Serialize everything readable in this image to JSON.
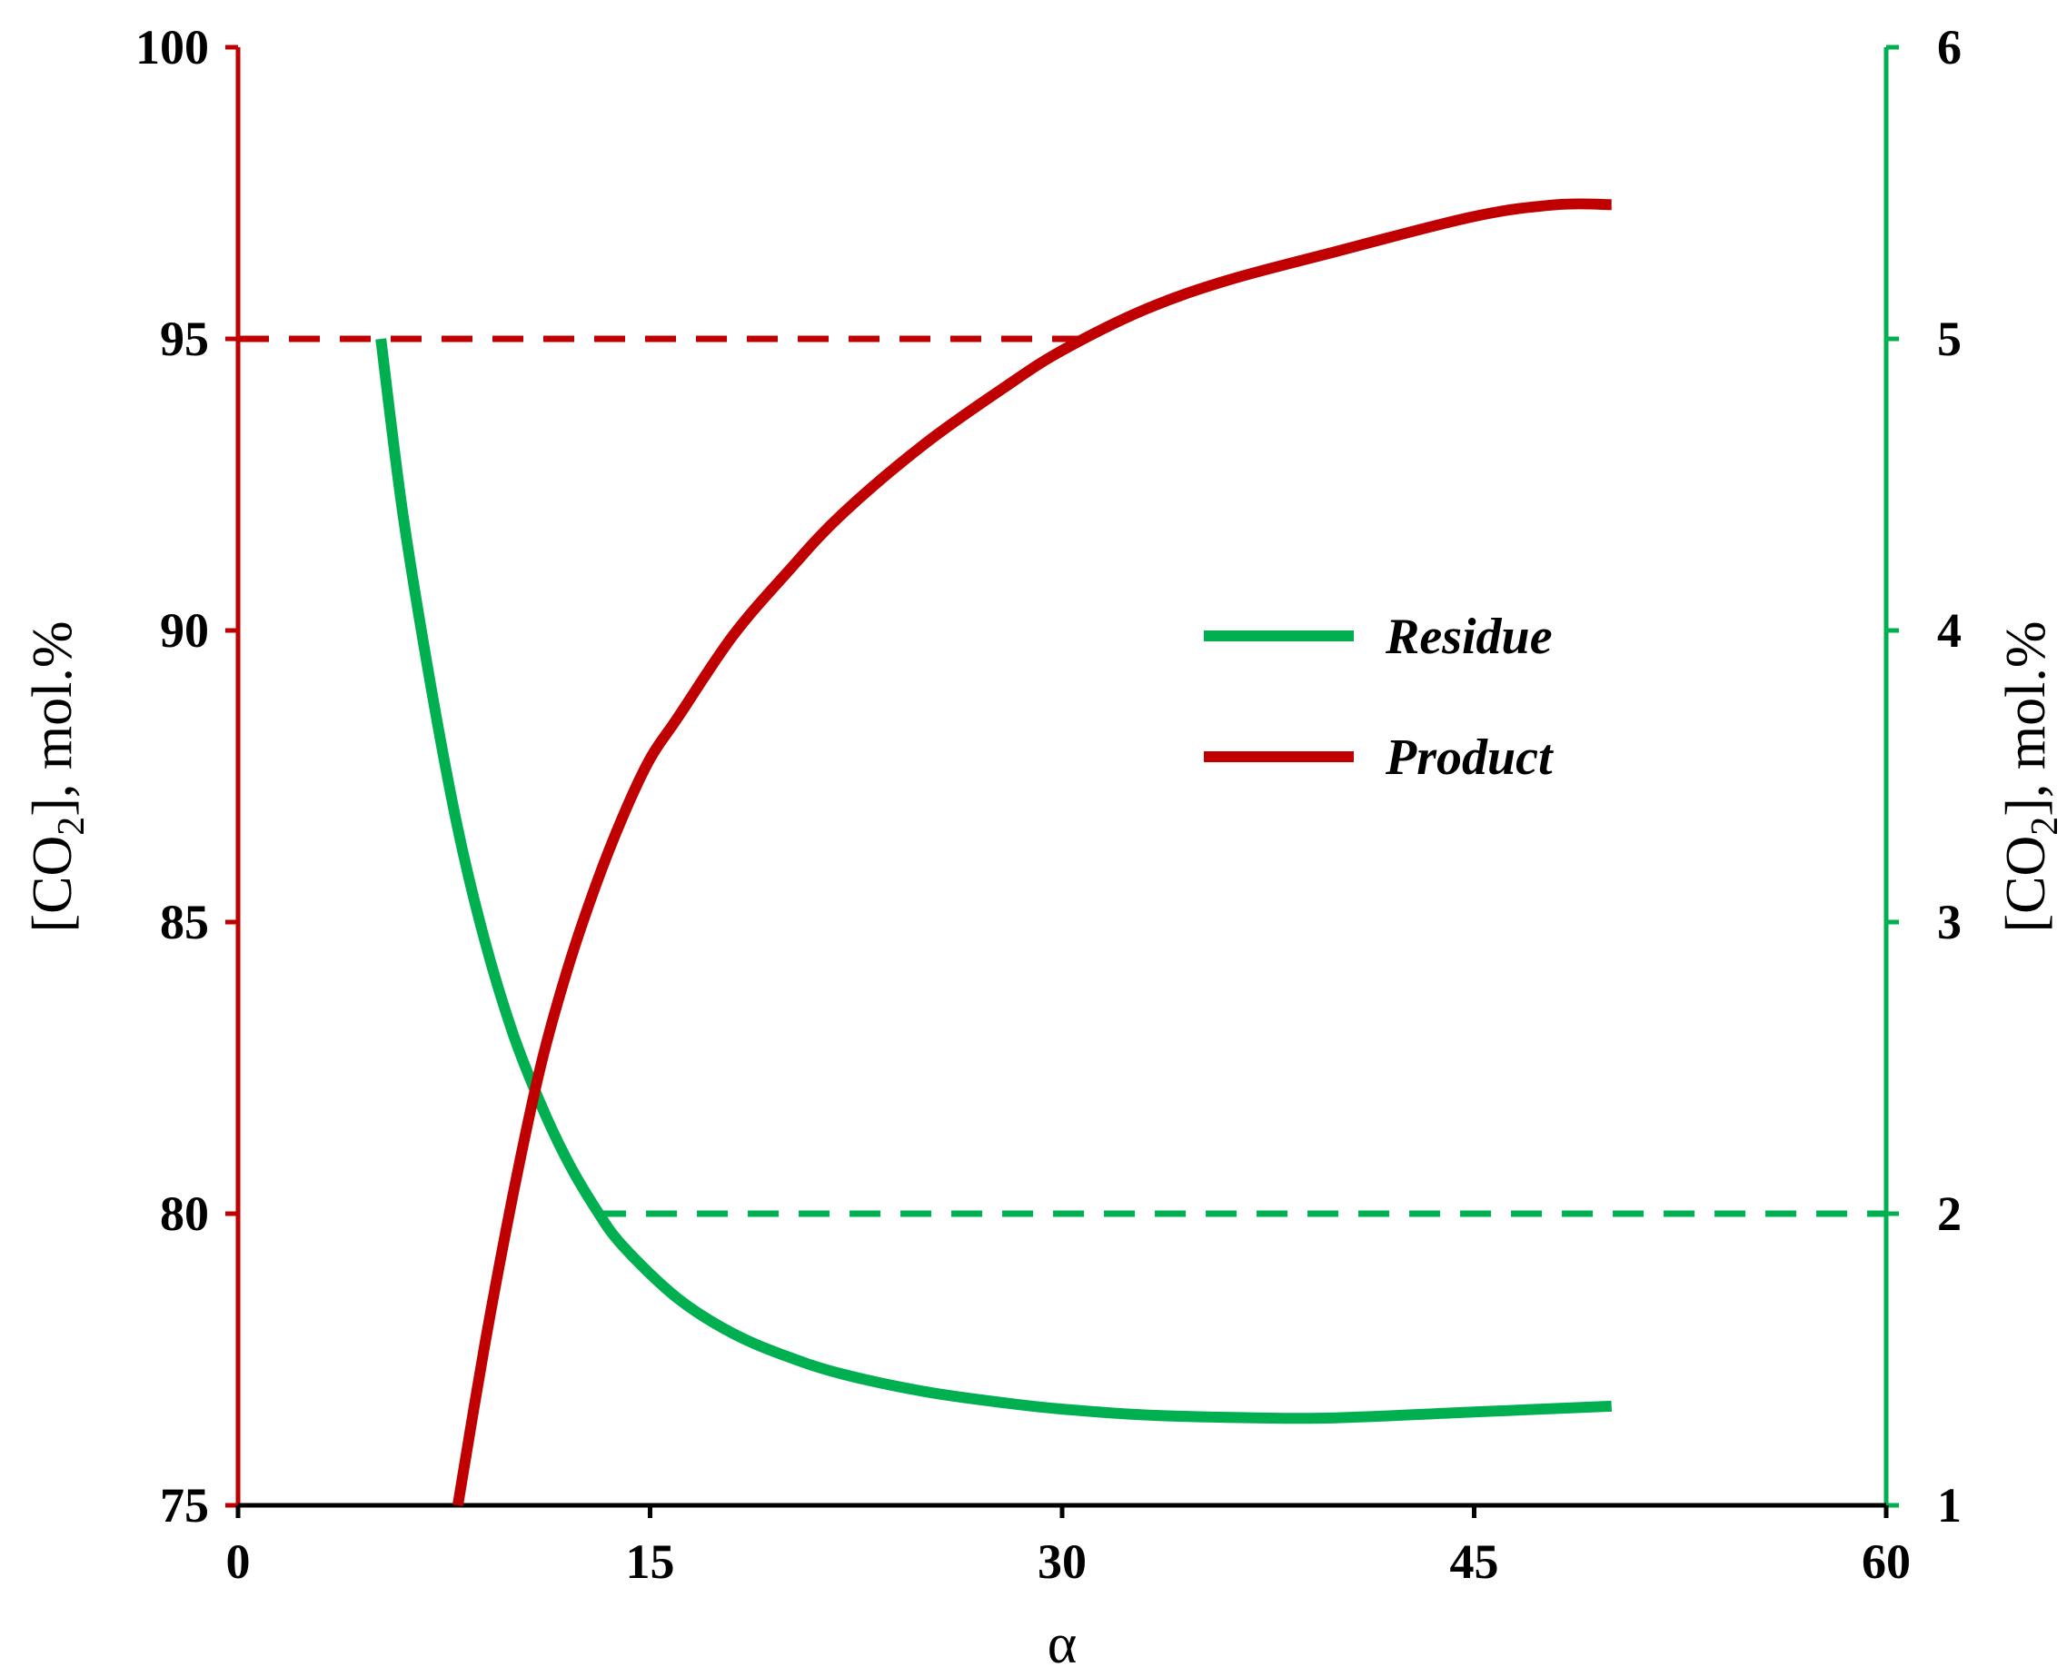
{
  "chart_data": {
    "type": "line",
    "xlabel": "α",
    "ylabel_left": {
      "text": "[CO",
      "sub": "2",
      "tail": "], mol.%"
    },
    "ylabel_right": {
      "text": "[CO",
      "sub": "2",
      "tail": "], mol.%"
    },
    "xlim": [
      0,
      60
    ],
    "ylim_left": [
      75,
      100
    ],
    "ylim_right": [
      1,
      6
    ],
    "xticks": [
      0,
      15,
      30,
      45,
      60
    ],
    "yticks_left": [
      75,
      80,
      85,
      90,
      95,
      100
    ],
    "yticks_right": [
      1,
      2,
      3,
      4,
      5,
      6
    ],
    "grid": false,
    "legend": "center-right",
    "colors": {
      "product": "#c00000",
      "residue": "#00b050",
      "baseline": "#000000"
    },
    "series": [
      {
        "name": "Residue",
        "axis": "right",
        "color": "#00b050",
        "x": [
          5.2,
          6,
          7,
          8,
          9,
          10,
          11,
          12,
          13,
          14,
          16,
          18,
          20,
          22,
          25,
          28,
          30,
          33,
          37,
          40,
          45,
          50
        ],
        "y": [
          5.0,
          4.4,
          3.82,
          3.32,
          2.93,
          2.62,
          2.38,
          2.18,
          2.02,
          1.89,
          1.71,
          1.59,
          1.51,
          1.45,
          1.39,
          1.35,
          1.33,
          1.31,
          1.3,
          1.3,
          1.32,
          1.34
        ]
      },
      {
        "name": "Product",
        "axis": "left",
        "color": "#c00000",
        "x": [
          8.0,
          9,
          10,
          11,
          12,
          13,
          14,
          15,
          16,
          18,
          20,
          22,
          25,
          28,
          30,
          33,
          36,
          40,
          45,
          48,
          50
        ],
        "y": [
          75.0,
          77.8,
          80.3,
          82.5,
          84.2,
          85.6,
          86.8,
          87.8,
          88.5,
          89.9,
          91.0,
          92.0,
          93.2,
          94.2,
          94.8,
          95.5,
          96.0,
          96.5,
          97.1,
          97.3,
          97.3
        ]
      }
    ],
    "reference_lines": [
      {
        "axis": "left",
        "y": 95,
        "x_from": 0,
        "x_to": 31,
        "color": "#c00000",
        "style": "dashed"
      },
      {
        "axis": "right",
        "y": 2,
        "x_from": 13,
        "x_to": 60,
        "color": "#00b050",
        "style": "dashed"
      }
    ]
  }
}
